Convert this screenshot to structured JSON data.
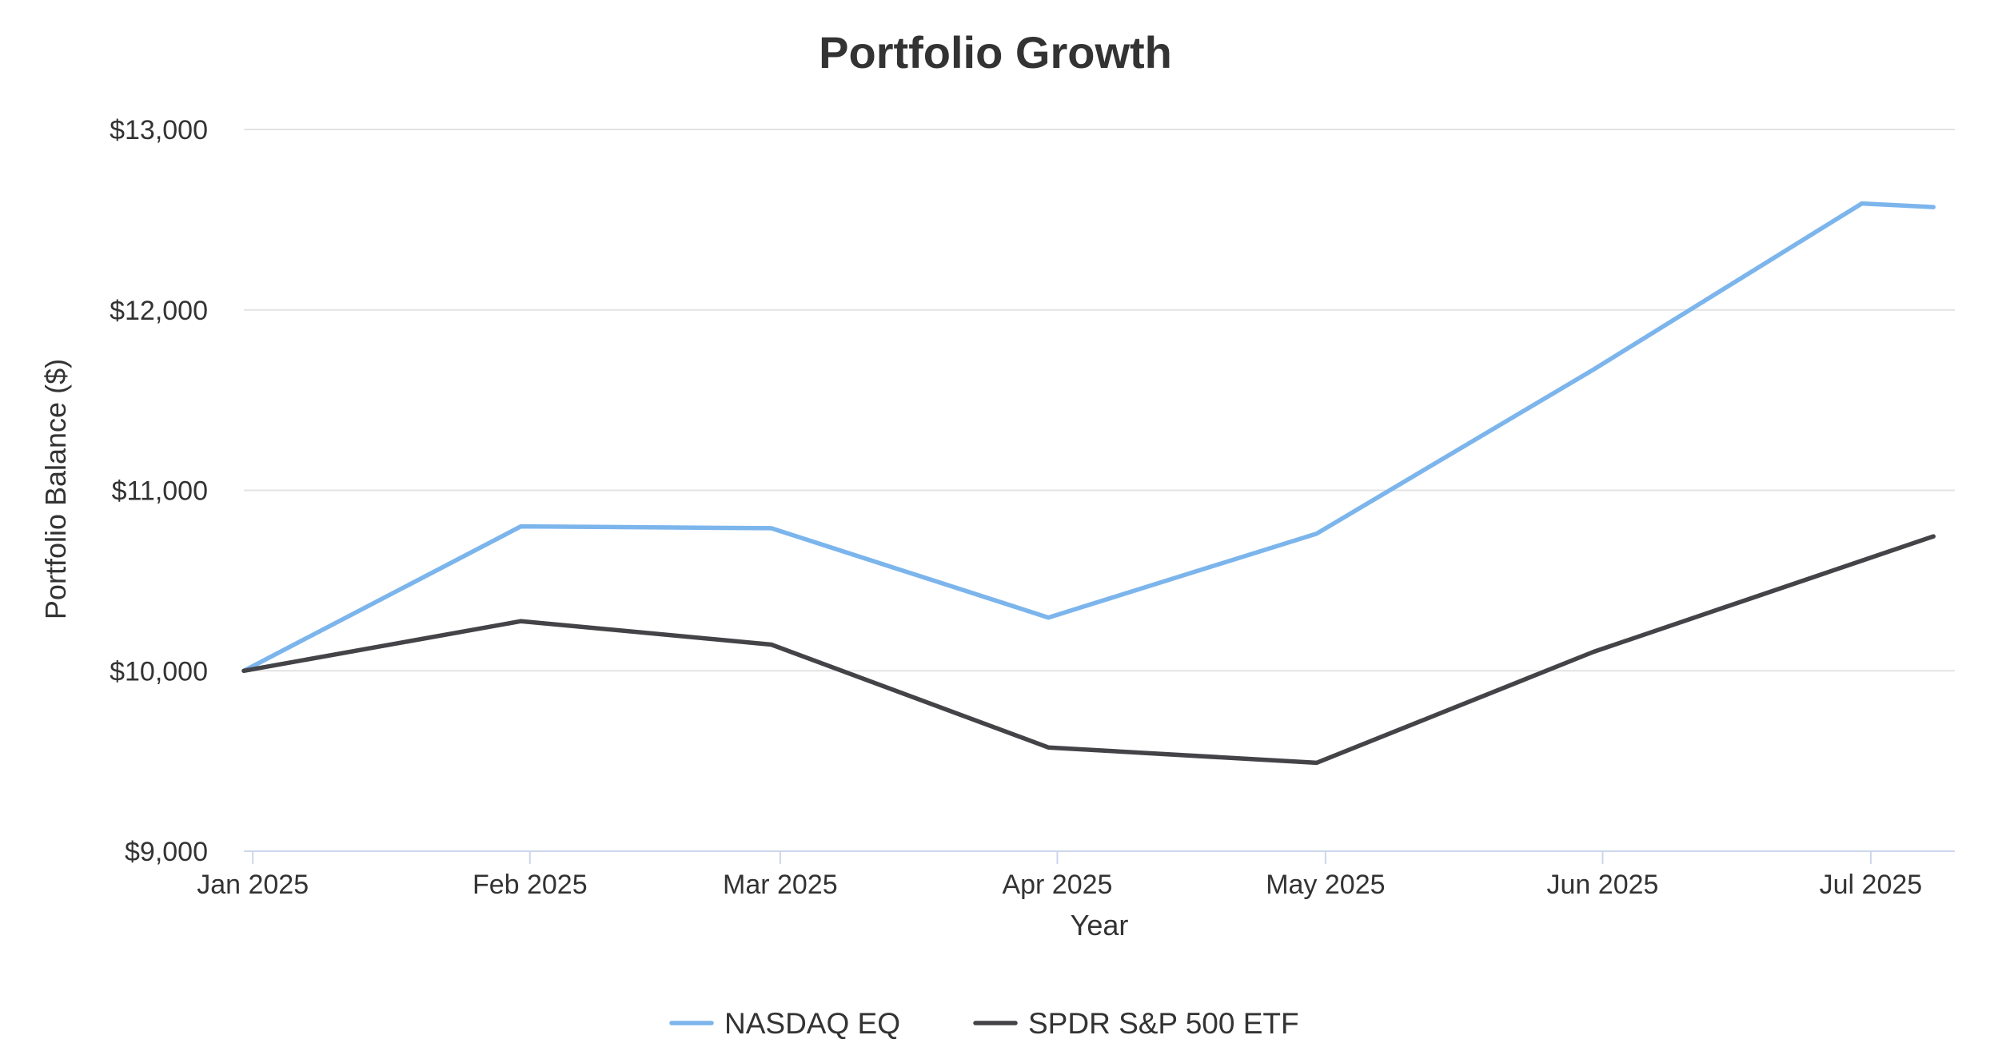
{
  "chart_data": {
    "type": "line",
    "title": "Portfolio Growth",
    "xlabel": "Year",
    "ylabel": "Portfolio Balance ($)",
    "ylim": [
      9000,
      13000
    ],
    "yticks": [
      9000,
      10000,
      11000,
      12000,
      13000
    ],
    "ytick_labels": [
      "$9,000",
      "$10,000",
      "$11,000",
      "$12,000",
      "$13,000"
    ],
    "xlim": [
      "2025-01-01",
      "2025-07-10"
    ],
    "xticks": [
      "2025-01-01",
      "2025-02-01",
      "2025-03-01",
      "2025-04-01",
      "2025-05-01",
      "2025-06-01",
      "2025-07-01"
    ],
    "xtick_labels": [
      "Jan 2025",
      "Feb 2025",
      "Mar 2025",
      "Apr 2025",
      "May 2025",
      "Jun 2025",
      "Jul 2025"
    ],
    "grid": true,
    "legend": "bottom-center",
    "x": [
      "2024-12-31",
      "2025-01-31",
      "2025-02-28",
      "2025-03-31",
      "2025-04-30",
      "2025-05-31",
      "2025-06-30",
      "2025-07-08"
    ],
    "series": [
      {
        "name": "NASDAQ EQ",
        "color": "#7cb5ec",
        "values": [
          10000,
          10800,
          10790,
          10295,
          10760,
          11670,
          12590,
          12570
        ]
      },
      {
        "name": "SPDR S&P 500 ETF",
        "color": "#434348",
        "values": [
          10000,
          10275,
          10145,
          9575,
          9490,
          10105,
          10610,
          10745
        ]
      }
    ]
  }
}
